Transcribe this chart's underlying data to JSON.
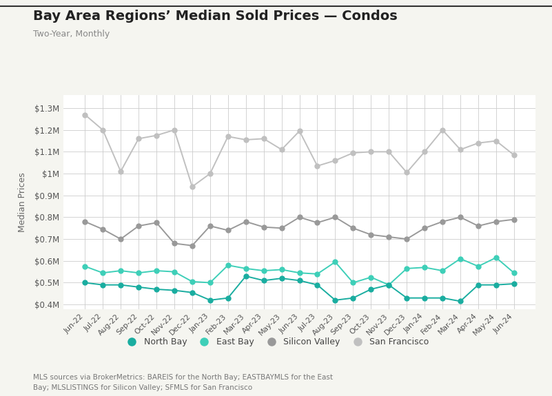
{
  "title": "Bay Area Regions’ Median Sold Prices — Condos",
  "subtitle": "Two-Year, Monthly",
  "ylabel": "Median Prices",
  "footnote_line1": "MLS sources via BrokerMetrics: BAREIS for the North Bay; EASTBAYMLS for the East",
  "footnote_line2": "Bay; MLSLISTINGS for Silicon Valley; SFMLS for San Francisco",
  "months": [
    "Jun-22",
    "Jul-22",
    "Aug-22",
    "Sep-22",
    "Oct-22",
    "Nov-22",
    "Dec-22",
    "Jan-23",
    "Feb-23",
    "Mar-23",
    "Apr-23",
    "May-23",
    "Jun-23",
    "Jul-23",
    "Aug-23",
    "Sep-23",
    "Oct-23",
    "Nov-23",
    "Dec-23",
    "Jan-24",
    "Feb-24",
    "Mar-24",
    "Apr-24",
    "May-24",
    "Jun-24"
  ],
  "north_bay": [
    500000,
    490000,
    490000,
    480000,
    470000,
    465000,
    455000,
    420000,
    430000,
    530000,
    510000,
    520000,
    510000,
    490000,
    420000,
    430000,
    470000,
    490000,
    430000,
    430000,
    430000,
    415000,
    490000,
    490000,
    495000
  ],
  "east_bay": [
    575000,
    545000,
    555000,
    545000,
    555000,
    550000,
    505000,
    500000,
    580000,
    565000,
    555000,
    560000,
    545000,
    540000,
    595000,
    500000,
    525000,
    490000,
    565000,
    570000,
    555000,
    610000,
    575000,
    615000,
    545000
  ],
  "silicon_valley": [
    780000,
    745000,
    700000,
    760000,
    775000,
    680000,
    670000,
    760000,
    740000,
    780000,
    755000,
    750000,
    800000,
    775000,
    800000,
    750000,
    720000,
    710000,
    700000,
    750000,
    780000,
    800000,
    760000,
    780000,
    790000
  ],
  "san_francisco": [
    1270000,
    1200000,
    1010000,
    1160000,
    1175000,
    1200000,
    940000,
    1000000,
    1170000,
    1155000,
    1160000,
    1110000,
    1195000,
    1035000,
    1060000,
    1095000,
    1100000,
    1100000,
    1005000,
    1100000,
    1200000,
    1110000,
    1140000,
    1150000,
    1085000
  ],
  "north_bay_color": "#1aada0",
  "east_bay_color": "#3ecfb8",
  "silicon_valley_color": "#999999",
  "san_francisco_color": "#C0C0C0",
  "fig_bg_color": "#F5F5F0",
  "plot_bg_color": "#FFFFFF",
  "border_color": "#333333",
  "ylim": [
    380000,
    1360000
  ],
  "yticks": [
    400000,
    500000,
    600000,
    700000,
    800000,
    900000,
    1000000,
    1100000,
    1200000,
    1300000
  ]
}
